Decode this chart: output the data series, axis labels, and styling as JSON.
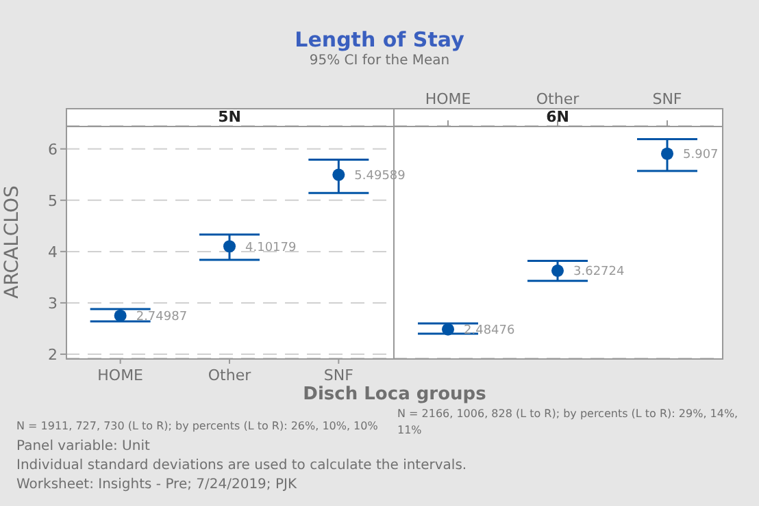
{
  "chart_data": [
    {
      "type": "scatter",
      "title": "5N",
      "xlabel": "Disch Loca groups",
      "ylabel": "ARCALCLOS",
      "annotations": [
        "Length of Stay",
        "95% CI for the Mean",
        "N = 1911, 727, 730 (L to R); by percents (L to R): 26%, 10%, 10%",
        "Panel variable: Unit",
        "Individual standard deviations are used to calculate the intervals.",
        "Worksheet: Insights - Pre; 7/24/2019; PJK"
      ],
      "categories": [
        "HOME",
        "Other",
        "SNF"
      ],
      "series": [
        {
          "color": "#0054a6",
          "values": [
            2.74987,
            4.10179,
            5.49589
          ],
          "errors": [
            [
              2.64,
              2.88
            ],
            [
              3.84,
              4.33
            ],
            [
              5.14,
              5.79
            ]
          ]
        }
      ],
      "ylim": [
        1.92,
        6.45
      ],
      "yticks": [
        2,
        3,
        4,
        5,
        6
      ],
      "grid": "y",
      "marker": "circle",
      "data_labels": true
    },
    {
      "type": "scatter",
      "title": "6N",
      "annotations": [
        "N = 2166, 1006, 828 (L to R); by percents (L to R): 29%, 14%, 11%"
      ],
      "categories": [
        "HOME",
        "Other",
        "SNF"
      ],
      "series": [
        {
          "color": "#0054a6",
          "values": [
            2.48476,
            3.62724,
            5.907
          ],
          "errors": [
            [
              2.4,
              2.6
            ],
            [
              3.43,
              3.82
            ],
            [
              5.57,
              6.19
            ]
          ]
        }
      ],
      "ylim": [
        1.92,
        6.45
      ],
      "yticks": [
        2,
        3,
        4,
        5,
        6
      ],
      "grid": "y",
      "marker": "circle",
      "data_labels": true,
      "tick_labels": "x"
    }
  ]
}
